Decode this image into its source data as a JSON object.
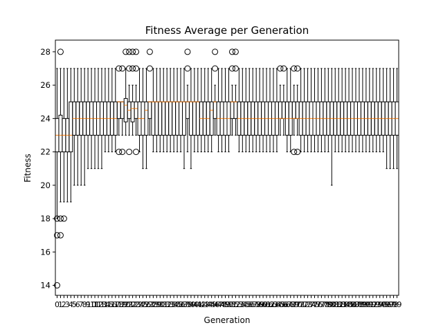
{
  "chart_data": {
    "type": "boxplot",
    "title": "Fitness Average per Generation",
    "xlabel": "Generation",
    "ylabel": "Fitness",
    "ylim": [
      13.4,
      28.7
    ],
    "yticks": [
      14,
      16,
      18,
      20,
      22,
      24,
      26,
      28
    ],
    "grid": false,
    "legend": "none",
    "colors": {
      "box": "#000000",
      "median": "#ff7f0e",
      "background": "#ffffff"
    },
    "categories": [
      "0",
      "1",
      "2",
      "3",
      "4",
      "5",
      "6",
      "7",
      "8",
      "9",
      "10",
      "11",
      "12",
      "13",
      "14",
      "15",
      "16",
      "17",
      "18",
      "19",
      "20",
      "21",
      "22",
      "23",
      "24",
      "25",
      "26",
      "27",
      "28",
      "29",
      "30",
      "31",
      "32",
      "33",
      "34",
      "35",
      "36",
      "37",
      "38",
      "39",
      "40",
      "41",
      "42",
      "43",
      "44",
      "45",
      "46",
      "47",
      "48",
      "49",
      "50",
      "51",
      "52",
      "53",
      "54",
      "55",
      "56",
      "57",
      "58",
      "59",
      "60",
      "61",
      "62",
      "63",
      "64",
      "65",
      "66",
      "67",
      "68",
      "69",
      "70",
      "71",
      "72",
      "73",
      "74",
      "75",
      "76",
      "77",
      "78",
      "79",
      "80",
      "81",
      "82",
      "83",
      "84",
      "85",
      "86",
      "87",
      "88",
      "89",
      "90",
      "91",
      "92",
      "93",
      "94",
      "95",
      "96",
      "97",
      "98",
      "99"
    ],
    "boxes": [
      {
        "lo": 18,
        "q1": 22,
        "med": 23,
        "q3": 24,
        "hi": 27,
        "fliers": [
          14,
          17,
          18
        ]
      },
      {
        "lo": 19,
        "q1": 22,
        "med": 23,
        "q3": 24.2,
        "hi": 27,
        "fliers": [
          17,
          18,
          28
        ]
      },
      {
        "lo": 19,
        "q1": 22,
        "med": 23,
        "q3": 24,
        "hi": 27,
        "fliers": [
          18
        ]
      },
      {
        "lo": 19,
        "q1": 22,
        "med": 23,
        "q3": 24,
        "hi": 27,
        "fliers": []
      },
      {
        "lo": 19,
        "q1": 22,
        "med": 23,
        "q3": 25,
        "hi": 27,
        "fliers": []
      },
      {
        "lo": 20,
        "q1": 23,
        "med": 24,
        "q3": 25,
        "hi": 27,
        "fliers": []
      },
      {
        "lo": 20,
        "q1": 23,
        "med": 24,
        "q3": 25,
        "hi": 27,
        "fliers": []
      },
      {
        "lo": 20,
        "q1": 23,
        "med": 24,
        "q3": 25,
        "hi": 27,
        "fliers": []
      },
      {
        "lo": 20,
        "q1": 23,
        "med": 24,
        "q3": 25,
        "hi": 27,
        "fliers": []
      },
      {
        "lo": 21,
        "q1": 23,
        "med": 24,
        "q3": 25,
        "hi": 27,
        "fliers": []
      },
      {
        "lo": 21,
        "q1": 23,
        "med": 24,
        "q3": 25,
        "hi": 27,
        "fliers": []
      },
      {
        "lo": 21,
        "q1": 23,
        "med": 24,
        "q3": 25,
        "hi": 27,
        "fliers": []
      },
      {
        "lo": 21,
        "q1": 23,
        "med": 24,
        "q3": 25,
        "hi": 27,
        "fliers": []
      },
      {
        "lo": 21,
        "q1": 23,
        "med": 24,
        "q3": 25,
        "hi": 27,
        "fliers": []
      },
      {
        "lo": 22,
        "q1": 23,
        "med": 24,
        "q3": 25,
        "hi": 27,
        "fliers": []
      },
      {
        "lo": 22,
        "q1": 23,
        "med": 24,
        "q3": 25,
        "hi": 27,
        "fliers": []
      },
      {
        "lo": 22,
        "q1": 23,
        "med": 24,
        "q3": 25,
        "hi": 27,
        "fliers": []
      },
      {
        "lo": 22,
        "q1": 23,
        "med": 24,
        "q3": 25,
        "hi": 27,
        "fliers": []
      },
      {
        "lo": 23,
        "q1": 24,
        "med": 25,
        "q3": 25,
        "hi": 25,
        "fliers": [
          22,
          27
        ]
      },
      {
        "lo": 23,
        "q1": 24,
        "med": 25,
        "q3": 25,
        "hi": 25,
        "fliers": [
          22,
          27
        ]
      },
      {
        "lo": 23,
        "q1": 23.8,
        "med": 24.8,
        "q3": 25.2,
        "hi": 27,
        "fliers": [
          28
        ]
      },
      {
        "lo": 23,
        "q1": 24,
        "med": 24.5,
        "q3": 25,
        "hi": 26,
        "fliers": [
          22,
          27,
          28
        ]
      },
      {
        "lo": 23,
        "q1": 23.8,
        "med": 24.6,
        "q3": 25,
        "hi": 26,
        "fliers": [
          27,
          28
        ]
      },
      {
        "lo": 23,
        "q1": 24,
        "med": 24.6,
        "q3": 25,
        "hi": 26,
        "fliers": [
          22,
          27,
          28
        ]
      },
      {
        "lo": 22,
        "q1": 23,
        "med": 24,
        "q3": 25,
        "hi": 27,
        "fliers": []
      },
      {
        "lo": 21,
        "q1": 23,
        "med": 24,
        "q3": 25,
        "hi": 27,
        "fliers": []
      },
      {
        "lo": 21,
        "q1": 23,
        "med": 24.5,
        "q3": 25,
        "hi": 27,
        "fliers": []
      },
      {
        "lo": 23,
        "q1": 24,
        "med": 25,
        "q3": 25,
        "hi": 25,
        "fliers": [
          27,
          28
        ]
      },
      {
        "lo": 22,
        "q1": 23,
        "med": 25,
        "q3": 25,
        "hi": 27,
        "fliers": []
      },
      {
        "lo": 22,
        "q1": 23,
        "med": 25,
        "q3": 25,
        "hi": 27,
        "fliers": []
      },
      {
        "lo": 22,
        "q1": 23,
        "med": 25,
        "q3": 25,
        "hi": 27,
        "fliers": []
      },
      {
        "lo": 22,
        "q1": 23,
        "med": 25,
        "q3": 25,
        "hi": 27,
        "fliers": []
      },
      {
        "lo": 22,
        "q1": 23,
        "med": 25,
        "q3": 25,
        "hi": 27,
        "fliers": []
      },
      {
        "lo": 22,
        "q1": 23,
        "med": 25,
        "q3": 25,
        "hi": 27,
        "fliers": []
      },
      {
        "lo": 22,
        "q1": 23,
        "med": 25,
        "q3": 25,
        "hi": 27,
        "fliers": []
      },
      {
        "lo": 22,
        "q1": 23,
        "med": 25,
        "q3": 25,
        "hi": 27,
        "fliers": []
      },
      {
        "lo": 22,
        "q1": 23,
        "med": 25,
        "q3": 25,
        "hi": 27,
        "fliers": []
      },
      {
        "lo": 21,
        "q1": 23,
        "med": 25,
        "q3": 25,
        "hi": 27,
        "fliers": []
      },
      {
        "lo": 22,
        "q1": 24,
        "med": 25,
        "q3": 25,
        "hi": 26,
        "fliers": [
          27,
          28
        ]
      },
      {
        "lo": 21,
        "q1": 23,
        "med": 25,
        "q3": 25,
        "hi": 27,
        "fliers": []
      },
      {
        "lo": 22,
        "q1": 23,
        "med": 25,
        "q3": 25,
        "hi": 27,
        "fliers": []
      },
      {
        "lo": 22,
        "q1": 23,
        "med": 25,
        "q3": 25,
        "hi": 27,
        "fliers": []
      },
      {
        "lo": 22,
        "q1": 23,
        "med": 24,
        "q3": 25,
        "hi": 27,
        "fliers": []
      },
      {
        "lo": 22,
        "q1": 23,
        "med": 24,
        "q3": 25,
        "hi": 27,
        "fliers": []
      },
      {
        "lo": 22,
        "q1": 23,
        "med": 24,
        "q3": 25,
        "hi": 27,
        "fliers": []
      },
      {
        "lo": 22,
        "q1": 23,
        "med": 24.5,
        "q3": 25,
        "hi": 27,
        "fliers": []
      },
      {
        "lo": 23,
        "q1": 24,
        "med": 25,
        "q3": 25,
        "hi": 26,
        "fliers": [
          27,
          28
        ]
      },
      {
        "lo": 22,
        "q1": 23,
        "med": 24,
        "q3": 25,
        "hi": 27,
        "fliers": []
      },
      {
        "lo": 22,
        "q1": 23,
        "med": 24,
        "q3": 25,
        "hi": 27,
        "fliers": []
      },
      {
        "lo": 22,
        "q1": 23,
        "med": 24,
        "q3": 25,
        "hi": 27,
        "fliers": []
      },
      {
        "lo": 22,
        "q1": 23,
        "med": 24,
        "q3": 25,
        "hi": 27,
        "fliers": []
      },
      {
        "lo": 23,
        "q1": 24,
        "med": 25,
        "q3": 25,
        "hi": 26,
        "fliers": [
          27,
          28
        ]
      },
      {
        "lo": 23,
        "q1": 24,
        "med": 25,
        "q3": 25,
        "hi": 26,
        "fliers": [
          27,
          28
        ]
      },
      {
        "lo": 22,
        "q1": 23,
        "med": 24,
        "q3": 25,
        "hi": 27,
        "fliers": []
      },
      {
        "lo": 22,
        "q1": 23,
        "med": 24,
        "q3": 25,
        "hi": 27,
        "fliers": []
      },
      {
        "lo": 22,
        "q1": 23,
        "med": 24,
        "q3": 25,
        "hi": 27,
        "fliers": []
      },
      {
        "lo": 22,
        "q1": 23,
        "med": 24,
        "q3": 25,
        "hi": 27,
        "fliers": []
      },
      {
        "lo": 22,
        "q1": 23,
        "med": 24,
        "q3": 25,
        "hi": 27,
        "fliers": []
      },
      {
        "lo": 22,
        "q1": 23,
        "med": 24,
        "q3": 25,
        "hi": 27,
        "fliers": []
      },
      {
        "lo": 22,
        "q1": 23,
        "med": 24,
        "q3": 25,
        "hi": 27,
        "fliers": []
      },
      {
        "lo": 22,
        "q1": 23,
        "med": 24,
        "q3": 25,
        "hi": 27,
        "fliers": []
      },
      {
        "lo": 22,
        "q1": 23,
        "med": 24,
        "q3": 25,
        "hi": 27,
        "fliers": []
      },
      {
        "lo": 22,
        "q1": 23,
        "med": 24,
        "q3": 25,
        "hi": 27,
        "fliers": []
      },
      {
        "lo": 22,
        "q1": 23,
        "med": 24,
        "q3": 25,
        "hi": 27,
        "fliers": []
      },
      {
        "lo": 22,
        "q1": 23,
        "med": 24,
        "q3": 25,
        "hi": 27,
        "fliers": []
      },
      {
        "lo": 23,
        "q1": 24,
        "med": 24,
        "q3": 25,
        "hi": 26,
        "fliers": [
          27
        ]
      },
      {
        "lo": 23,
        "q1": 24,
        "med": 24,
        "q3": 25,
        "hi": 26,
        "fliers": [
          27
        ]
      },
      {
        "lo": 22,
        "q1": 23,
        "med": 24,
        "q3": 25,
        "hi": 27,
        "fliers": []
      },
      {
        "lo": 22,
        "q1": 23,
        "med": 24,
        "q3": 25,
        "hi": 27,
        "fliers": []
      },
      {
        "lo": 23,
        "q1": 24,
        "med": 24,
        "q3": 25,
        "hi": 26,
        "fliers": [
          22,
          27
        ]
      },
      {
        "lo": 23,
        "q1": 24,
        "med": 24,
        "q3": 25,
        "hi": 26,
        "fliers": [
          22,
          27
        ]
      },
      {
        "lo": 22,
        "q1": 23,
        "med": 24,
        "q3": 25,
        "hi": 27,
        "fliers": []
      },
      {
        "lo": 22,
        "q1": 23,
        "med": 24,
        "q3": 25,
        "hi": 27,
        "fliers": []
      },
      {
        "lo": 22,
        "q1": 23,
        "med": 24,
        "q3": 25,
        "hi": 27,
        "fliers": []
      },
      {
        "lo": 22,
        "q1": 23,
        "med": 24,
        "q3": 25,
        "hi": 27,
        "fliers": []
      },
      {
        "lo": 22,
        "q1": 23,
        "med": 24,
        "q3": 25,
        "hi": 27,
        "fliers": []
      },
      {
        "lo": 22,
        "q1": 23,
        "med": 24,
        "q3": 25,
        "hi": 27,
        "fliers": []
      },
      {
        "lo": 22,
        "q1": 23,
        "med": 24,
        "q3": 25,
        "hi": 27,
        "fliers": []
      },
      {
        "lo": 22,
        "q1": 23,
        "med": 24,
        "q3": 25,
        "hi": 27,
        "fliers": []
      },
      {
        "lo": 22,
        "q1": 23,
        "med": 24,
        "q3": 25,
        "hi": 27,
        "fliers": []
      },
      {
        "lo": 20,
        "q1": 23,
        "med": 24,
        "q3": 25,
        "hi": 27,
        "fliers": []
      },
      {
        "lo": 22,
        "q1": 23,
        "med": 24,
        "q3": 25,
        "hi": 27,
        "fliers": []
      },
      {
        "lo": 22,
        "q1": 23,
        "med": 24,
        "q3": 25,
        "hi": 27,
        "fliers": []
      },
      {
        "lo": 22,
        "q1": 23,
        "med": 24,
        "q3": 25,
        "hi": 27,
        "fliers": []
      },
      {
        "lo": 22,
        "q1": 23,
        "med": 24,
        "q3": 25,
        "hi": 27,
        "fliers": []
      },
      {
        "lo": 22,
        "q1": 23,
        "med": 24,
        "q3": 25,
        "hi": 27,
        "fliers": []
      },
      {
        "lo": 22,
        "q1": 23,
        "med": 24,
        "q3": 25,
        "hi": 27,
        "fliers": []
      },
      {
        "lo": 22,
        "q1": 23,
        "med": 24,
        "q3": 25,
        "hi": 27,
        "fliers": []
      },
      {
        "lo": 22,
        "q1": 23,
        "med": 24,
        "q3": 25,
        "hi": 27,
        "fliers": []
      },
      {
        "lo": 22,
        "q1": 23,
        "med": 24,
        "q3": 25,
        "hi": 27,
        "fliers": []
      },
      {
        "lo": 22,
        "q1": 23,
        "med": 24,
        "q3": 25,
        "hi": 27,
        "fliers": []
      },
      {
        "lo": 22,
        "q1": 23,
        "med": 24,
        "q3": 25,
        "hi": 27,
        "fliers": []
      },
      {
        "lo": 22,
        "q1": 23,
        "med": 24,
        "q3": 25,
        "hi": 27,
        "fliers": []
      },
      {
        "lo": 22,
        "q1": 23,
        "med": 24,
        "q3": 25,
        "hi": 27,
        "fliers": []
      },
      {
        "lo": 22,
        "q1": 23,
        "med": 24,
        "q3": 25,
        "hi": 27,
        "fliers": []
      },
      {
        "lo": 22,
        "q1": 23,
        "med": 24,
        "q3": 25,
        "hi": 27,
        "fliers": []
      },
      {
        "lo": 21,
        "q1": 23,
        "med": 24,
        "q3": 25,
        "hi": 27,
        "fliers": []
      },
      {
        "lo": 21,
        "q1": 23,
        "med": 24,
        "q3": 25,
        "hi": 27,
        "fliers": []
      },
      {
        "lo": 21,
        "q1": 23,
        "med": 24,
        "q3": 25,
        "hi": 27,
        "fliers": []
      },
      {
        "lo": 21,
        "q1": 23,
        "med": 24,
        "q3": 25,
        "hi": 27,
        "fliers": []
      }
    ]
  }
}
